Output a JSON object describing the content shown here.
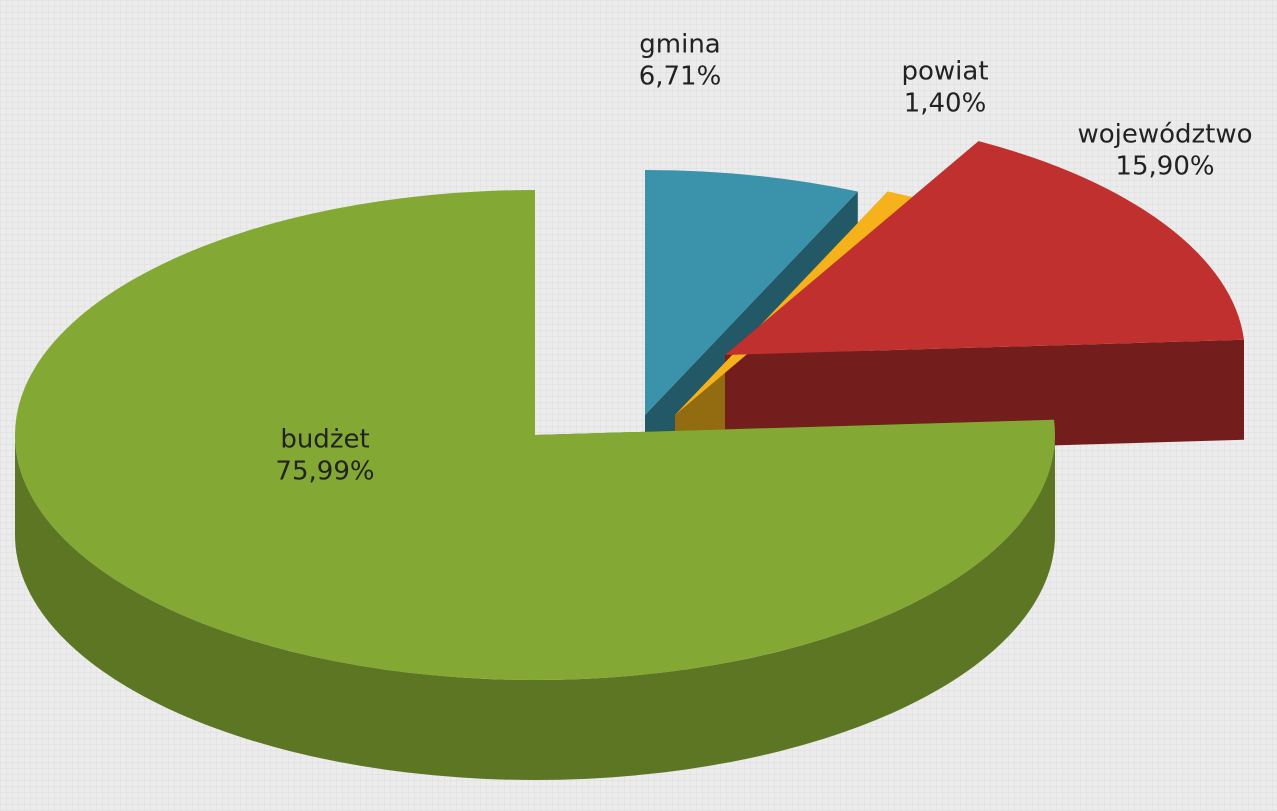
{
  "chart_data": {
    "type": "pie3d",
    "categories": [
      "gmina",
      "powiat",
      "województwo",
      "budżet"
    ],
    "values": [
      6.71,
      1.4,
      15.9,
      75.99
    ],
    "value_labels": [
      "6,71%",
      "1,40%",
      "15,90%",
      "75,99%"
    ],
    "colors": [
      "#3a93ab",
      "#f5b21a",
      "#c0302f",
      "#84a834"
    ]
  }
}
